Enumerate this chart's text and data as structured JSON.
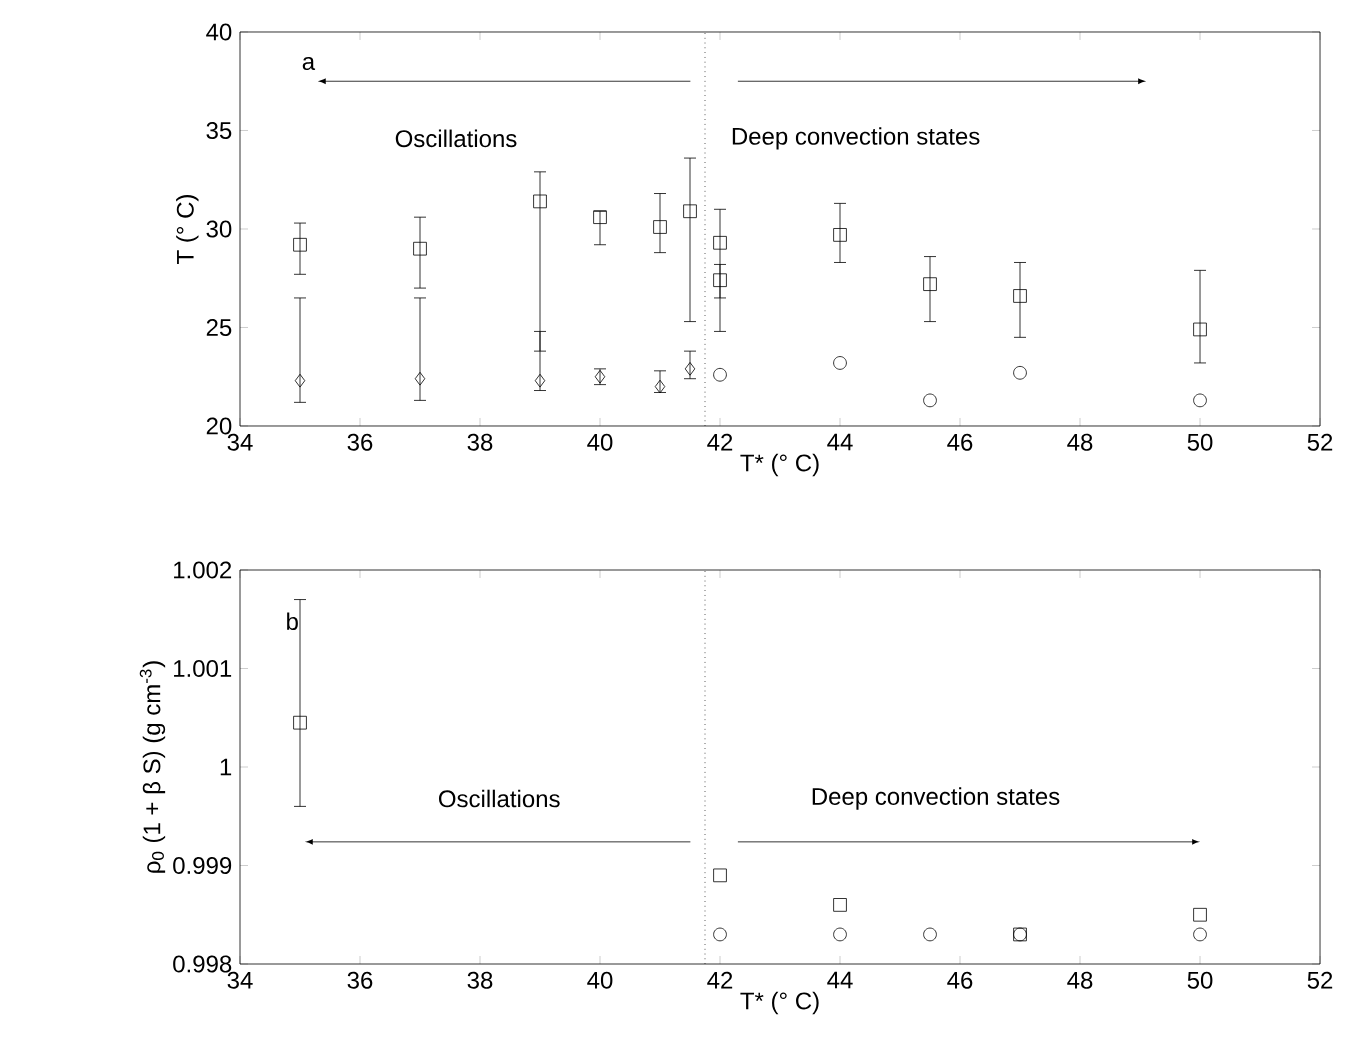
{
  "chart_data": [
    {
      "type": "scatter",
      "xlabel": "T* (° C)",
      "ylabel": "T (° C)",
      "xlim": [
        34,
        52
      ],
      "ylim": [
        20,
        40
      ],
      "xticks": [
        34,
        36,
        38,
        40,
        42,
        44,
        46,
        48,
        50,
        52
      ],
      "yticks": [
        20,
        25,
        30,
        35,
        40
      ],
      "grid": false,
      "annotations": [
        "a",
        "Oscillations",
        "Deep convection states"
      ],
      "ref_lines": [
        {
          "axis": "x",
          "value": 41.75,
          "line_style": "dotted",
          "color": "#000000"
        }
      ],
      "series": [
        {
          "color": "#000000",
          "marker": "square",
          "x": [
            35,
            37,
            39,
            40,
            41,
            41.5,
            42,
            42,
            44,
            45.5,
            47,
            50
          ],
          "values": [
            29.2,
            29.0,
            31.4,
            30.6,
            30.1,
            30.9,
            29.3,
            27.4,
            29.7,
            27.2,
            26.6,
            24.9
          ],
          "errors": [
            [
              27.7,
              30.3
            ],
            [
              27.0,
              30.6
            ],
            [
              23.8,
              32.9
            ],
            [
              29.2,
              30.9
            ],
            [
              28.8,
              31.8
            ],
            [
              25.3,
              33.6
            ],
            [
              26.5,
              31.0
            ],
            [
              24.8,
              28.2
            ],
            [
              28.3,
              31.3
            ],
            [
              25.3,
              28.6
            ],
            [
              24.5,
              28.3
            ],
            [
              23.2,
              27.9
            ]
          ]
        },
        {
          "color": "#000000",
          "marker": "diamond",
          "x": [
            35,
            37,
            39,
            40,
            41,
            41.5
          ],
          "values": [
            22.3,
            22.4,
            22.3,
            22.5,
            22.0,
            22.9
          ],
          "errors": [
            [
              21.2,
              26.5
            ],
            [
              21.3,
              26.5
            ],
            [
              21.8,
              24.8
            ],
            [
              22.1,
              22.9
            ],
            [
              21.7,
              22.8
            ],
            [
              22.4,
              23.8
            ]
          ]
        },
        {
          "color": "#000000",
          "marker": "circle",
          "x": [
            42,
            44,
            45.5,
            47,
            50
          ],
          "values": [
            22.6,
            23.2,
            21.3,
            22.7,
            21.3
          ]
        }
      ]
    },
    {
      "type": "scatter",
      "xlabel": "T* (° C)",
      "ylabel": "ρ$_{0}$ (1 + β S) (g cm$^{-3}$)",
      "xlim": [
        34,
        52
      ],
      "ylim": [
        0.998,
        1.002
      ],
      "xticks": [
        34,
        36,
        38,
        40,
        42,
        44,
        46,
        48,
        50,
        52
      ],
      "yticks": [
        0.998,
        0.999,
        1,
        1.001,
        1.002
      ],
      "grid": false,
      "annotations": [
        "b",
        "Oscillations",
        "Deep convection states"
      ],
      "ref_lines": [
        {
          "axis": "x",
          "value": 41.75,
          "line_style": "dotted",
          "color": "#000000"
        }
      ],
      "series": [
        {
          "color": "#000000",
          "marker": "square",
          "x": [
            35,
            42,
            44,
            47,
            50
          ],
          "values": [
            1.00045,
            0.9989,
            0.9986,
            0.9983,
            0.9985
          ],
          "errors": [
            [
              0.9996,
              1.0017
            ],
            null,
            null,
            null,
            null
          ]
        },
        {
          "color": "#000000",
          "marker": "circle",
          "x": [
            42,
            44,
            45.5,
            47,
            50
          ],
          "values": [
            0.9983,
            0.9983,
            0.9983,
            0.9983,
            0.9983
          ]
        }
      ]
    }
  ]
}
